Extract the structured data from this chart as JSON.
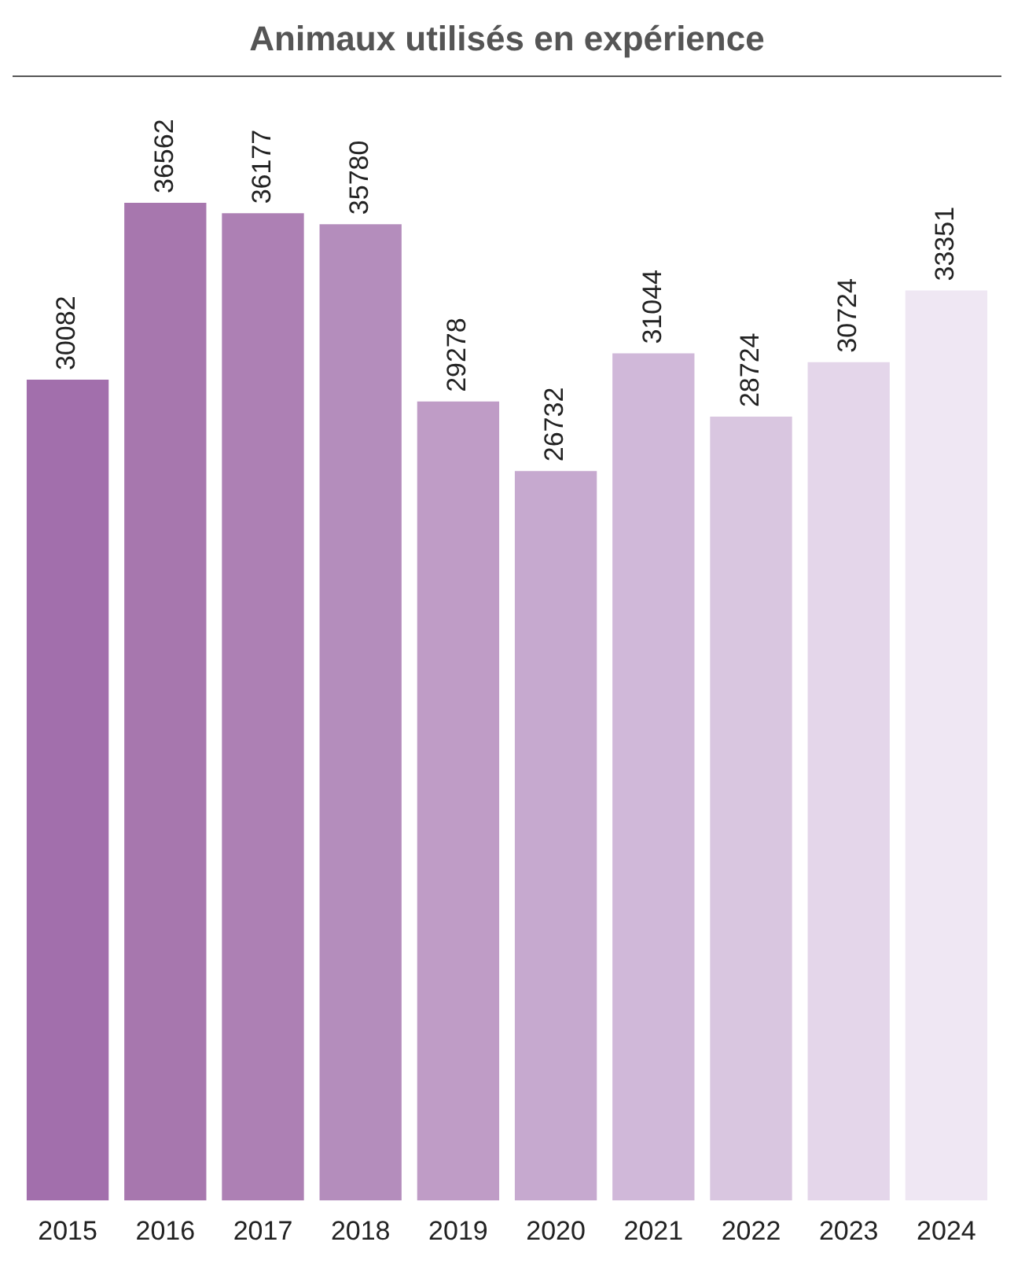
{
  "chart_data": {
    "type": "bar",
    "title": "Animaux utilisés en expérience",
    "categories": [
      "2015",
      "2016",
      "2017",
      "2018",
      "2019",
      "2020",
      "2021",
      "2022",
      "2023",
      "2024"
    ],
    "values": [
      30082,
      36562,
      36177,
      35780,
      29278,
      26732,
      31044,
      28724,
      30724,
      33351
    ],
    "colors": [
      "#a26fac",
      "#a777ae",
      "#ad80b4",
      "#b48dbc",
      "#bf9cc6",
      "#c6a9cf",
      "#d0b8d9",
      "#d9c6e0",
      "#e4d6ea",
      "#efe7f3"
    ],
    "data_labels": true,
    "grid": false,
    "legend": false
  }
}
